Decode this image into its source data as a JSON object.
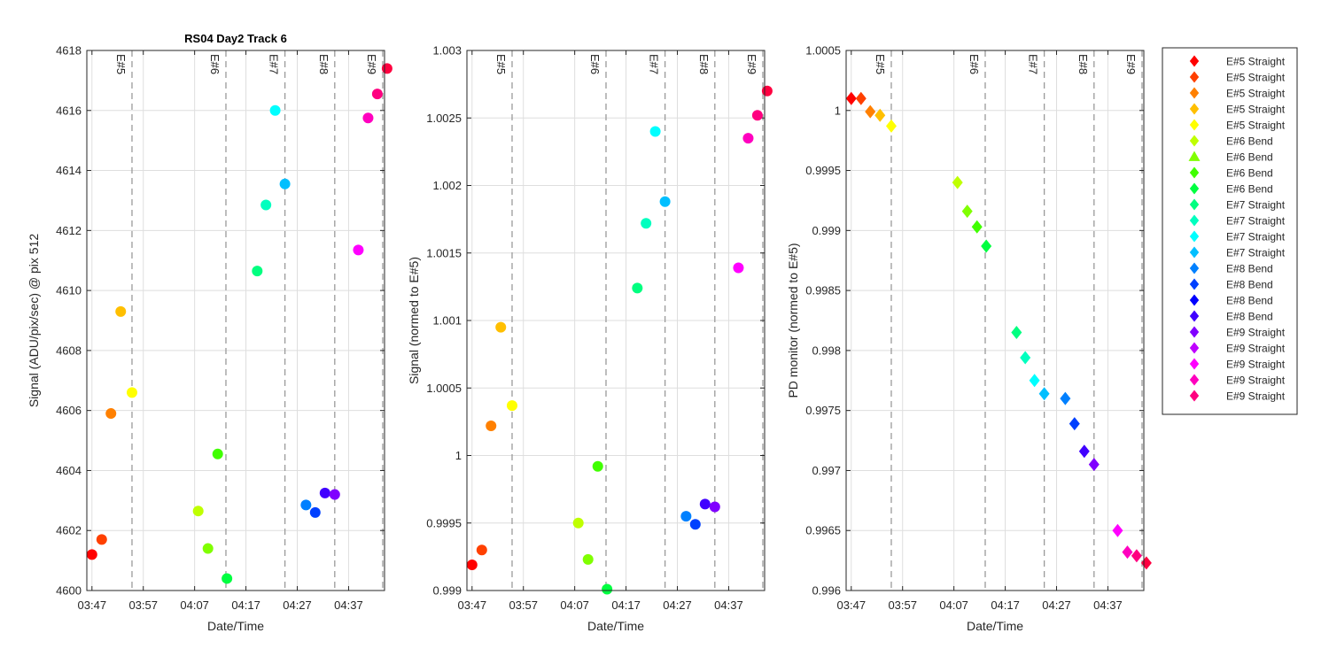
{
  "palette": [
    "#ff0000",
    "#ff4000",
    "#ff8000",
    "#ffbf00",
    "#ffff00",
    "#bfff00",
    "#80ff00",
    "#40ff00",
    "#00ff40",
    "#00ff80",
    "#00ffbf",
    "#00ffff",
    "#00bfff",
    "#0080ff",
    "#0040ff",
    "#0000ff",
    "#4000ff",
    "#8000ff",
    "#bf00ff",
    "#ff00ff",
    "#ff00bf",
    "#ff0080",
    "#ff0040"
  ],
  "chart_data": [
    {
      "type": "scatter",
      "title": "RS04 Day2 Track 6",
      "xlabel": "Date/Time",
      "ylabel": "Signal (ADU/pix/sec) @ pix 512",
      "xticks": [
        "03:47",
        "03:57",
        "04:07",
        "04:17",
        "04:27",
        "04:37"
      ],
      "xlim": [
        "03:46",
        "04:44"
      ],
      "ylim": [
        4600,
        4618
      ],
      "yticks": [
        "4600",
        "4602",
        "4604",
        "4606",
        "4608",
        "4610",
        "4612",
        "4614",
        "4616",
        "4618"
      ],
      "grid": true,
      "marker": "circle",
      "event_lines": [
        {
          "label": "E#5",
          "time": "03:54.8"
        },
        {
          "label": "E#6",
          "time": "04:13.1"
        },
        {
          "label": "E#7",
          "time": "04:24.6"
        },
        {
          "label": "E#8",
          "time": "04:34.3"
        },
        {
          "label": "E#9",
          "time": "04:45.0"
        }
      ],
      "points": [
        {
          "x": "03:47.0",
          "y": 4601.2,
          "color": "#ff0000"
        },
        {
          "x": "03:48.9",
          "y": 4601.7,
          "color": "#ff4000"
        },
        {
          "x": "03:50.7",
          "y": 4605.9,
          "color": "#ff8000"
        },
        {
          "x": "03:52.6",
          "y": 4609.3,
          "color": "#ffbf00"
        },
        {
          "x": "03:54.8",
          "y": 4606.6,
          "color": "#ffff00"
        },
        {
          "x": "04:07.7",
          "y": 4602.65,
          "color": "#bfff00"
        },
        {
          "x": "04:09.6",
          "y": 4601.4,
          "color": "#80ff00"
        },
        {
          "x": "04:11.5",
          "y": 4604.55,
          "color": "#40ff00"
        },
        {
          "x": "04:13.3",
          "y": 4600.4,
          "color": "#00ff40"
        },
        {
          "x": "04:19.2",
          "y": 4610.65,
          "color": "#00ff80"
        },
        {
          "x": "04:20.9",
          "y": 4612.85,
          "color": "#00ffbf"
        },
        {
          "x": "04:22.7",
          "y": 4616.0,
          "color": "#00ffff"
        },
        {
          "x": "04:24.6",
          "y": 4613.55,
          "color": "#00bfff"
        },
        {
          "x": "04:28.7",
          "y": 4602.85,
          "color": "#0080ff"
        },
        {
          "x": "04:30.5",
          "y": 4602.6,
          "color": "#0040ff"
        },
        {
          "x": "04:32.4",
          "y": 4603.25,
          "color": "#4000ff"
        },
        {
          "x": "04:34.3",
          "y": 4603.2,
          "color": "#8000ff"
        },
        {
          "x": "04:38.9",
          "y": 4611.35,
          "color": "#ff00ff"
        },
        {
          "x": "04:40.8",
          "y": 4615.75,
          "color": "#ff00bf"
        },
        {
          "x": "04:42.6",
          "y": 4616.55,
          "color": "#ff0080"
        },
        {
          "x": "04:44.5",
          "y": 4617.4,
          "color": "#ff0040"
        }
      ]
    },
    {
      "type": "scatter",
      "title": "",
      "xlabel": "Date/Time",
      "ylabel": "Signal (normed to E#5)",
      "xticks": [
        "03:47",
        "03:57",
        "04:07",
        "04:17",
        "04:27",
        "04:37"
      ],
      "xlim": [
        "03:46",
        "04:44"
      ],
      "ylim": [
        0.999,
        1.003
      ],
      "yticks": [
        "0.999",
        "0.9995",
        "1",
        "1.0005",
        "1.001",
        "1.0015",
        "1.002",
        "1.0025",
        "1.003"
      ],
      "grid": true,
      "marker": "circle",
      "event_lines": [
        {
          "label": "E#5",
          "time": "03:54.8"
        },
        {
          "label": "E#6",
          "time": "04:13.1"
        },
        {
          "label": "E#7",
          "time": "04:24.6"
        },
        {
          "label": "E#8",
          "time": "04:34.3"
        },
        {
          "label": "E#9",
          "time": "04:45.0"
        }
      ],
      "points": [
        {
          "x": "03:47.0",
          "y": 0.99919,
          "color": "#ff0000"
        },
        {
          "x": "03:48.9",
          "y": 0.9993,
          "color": "#ff4000"
        },
        {
          "x": "03:50.7",
          "y": 1.00022,
          "color": "#ff8000"
        },
        {
          "x": "03:52.6",
          "y": 1.00095,
          "color": "#ffbf00"
        },
        {
          "x": "03:54.8",
          "y": 1.00037,
          "color": "#ffff00"
        },
        {
          "x": "04:07.7",
          "y": 0.9995,
          "color": "#bfff00"
        },
        {
          "x": "04:09.6",
          "y": 0.99923,
          "color": "#80ff00"
        },
        {
          "x": "04:11.5",
          "y": 0.99992,
          "color": "#40ff00"
        },
        {
          "x": "04:13.3",
          "y": 0.99901,
          "color": "#00ff40"
        },
        {
          "x": "04:19.2",
          "y": 1.00124,
          "color": "#00ff80"
        },
        {
          "x": "04:20.9",
          "y": 1.00172,
          "color": "#00ffbf"
        },
        {
          "x": "04:22.7",
          "y": 1.0024,
          "color": "#00ffff"
        },
        {
          "x": "04:24.6",
          "y": 1.00188,
          "color": "#00bfff"
        },
        {
          "x": "04:28.7",
          "y": 0.99955,
          "color": "#0080ff"
        },
        {
          "x": "04:30.5",
          "y": 0.99949,
          "color": "#0040ff"
        },
        {
          "x": "04:32.4",
          "y": 0.99964,
          "color": "#4000ff"
        },
        {
          "x": "04:34.3",
          "y": 0.99962,
          "color": "#8000ff"
        },
        {
          "x": "04:38.9",
          "y": 1.00139,
          "color": "#ff00ff"
        },
        {
          "x": "04:40.8",
          "y": 1.00235,
          "color": "#ff00bf"
        },
        {
          "x": "04:42.6",
          "y": 1.00252,
          "color": "#ff0080"
        },
        {
          "x": "04:44.5",
          "y": 1.0027,
          "color": "#ff0040"
        }
      ]
    },
    {
      "type": "scatter",
      "title": "",
      "xlabel": "Date/Time",
      "ylabel": "PD monitor (normed to E#5)",
      "xticks": [
        "03:47",
        "03:57",
        "04:07",
        "04:17",
        "04:27",
        "04:37"
      ],
      "xlim": [
        "03:46",
        "04:44"
      ],
      "ylim": [
        0.996,
        1.0005
      ],
      "yticks": [
        "0.996",
        "0.9965",
        "0.997",
        "0.9975",
        "0.998",
        "0.9985",
        "0.999",
        "0.9995",
        "1",
        "1.0005"
      ],
      "grid": true,
      "marker": "diamond",
      "event_lines": [
        {
          "label": "E#5",
          "time": "03:54.8"
        },
        {
          "label": "E#6",
          "time": "04:13.1"
        },
        {
          "label": "E#7",
          "time": "04:24.6"
        },
        {
          "label": "E#8",
          "time": "04:34.3"
        },
        {
          "label": "E#9",
          "time": "04:45.0"
        }
      ],
      "points": [
        {
          "x": "03:47.0",
          "y": 1.0001,
          "color": "#ff0000"
        },
        {
          "x": "03:48.9",
          "y": 1.0001,
          "color": "#ff4000"
        },
        {
          "x": "03:50.7",
          "y": 0.99999,
          "color": "#ff8000"
        },
        {
          "x": "03:52.6",
          "y": 0.99996,
          "color": "#ffbf00"
        },
        {
          "x": "03:54.8",
          "y": 0.99987,
          "color": "#ffff00"
        },
        {
          "x": "04:07.7",
          "y": 0.9994,
          "color": "#bfff00"
        },
        {
          "x": "04:09.6",
          "y": 0.99916,
          "color": "#80ff00"
        },
        {
          "x": "04:11.5",
          "y": 0.99903,
          "color": "#40ff00"
        },
        {
          "x": "04:13.3",
          "y": 0.99887,
          "color": "#00ff40"
        },
        {
          "x": "04:19.2",
          "y": 0.99815,
          "color": "#00ff80"
        },
        {
          "x": "04:20.9",
          "y": 0.99794,
          "color": "#00ffbf"
        },
        {
          "x": "04:22.7",
          "y": 0.99775,
          "color": "#00ffff"
        },
        {
          "x": "04:24.6",
          "y": 0.99764,
          "color": "#00bfff"
        },
        {
          "x": "04:28.7",
          "y": 0.9976,
          "color": "#0080ff"
        },
        {
          "x": "04:30.5",
          "y": 0.99739,
          "color": "#0040ff"
        },
        {
          "x": "04:32.4",
          "y": 0.99716,
          "color": "#4000ff"
        },
        {
          "x": "04:34.3",
          "y": 0.99705,
          "color": "#8000ff"
        },
        {
          "x": "04:38.9",
          "y": 0.9965,
          "color": "#ff00ff"
        },
        {
          "x": "04:40.8",
          "y": 0.99632,
          "color": "#ff00bf"
        },
        {
          "x": "04:42.6",
          "y": 0.99629,
          "color": "#ff0080"
        },
        {
          "x": "04:44.5",
          "y": 0.99623,
          "color": "#ff0040"
        }
      ]
    }
  ],
  "legend": {
    "placement": "right",
    "entries": [
      {
        "label": "E#5 Straight",
        "marker": "diamond",
        "color": "#ff0000"
      },
      {
        "label": "E#5 Straight",
        "marker": "diamond",
        "color": "#ff4000"
      },
      {
        "label": "E#5 Straight",
        "marker": "diamond",
        "color": "#ff8000"
      },
      {
        "label": "E#5 Straight",
        "marker": "diamond",
        "color": "#ffbf00"
      },
      {
        "label": "E#5 Straight",
        "marker": "diamond",
        "color": "#ffff00"
      },
      {
        "label": "E#6 Bend",
        "marker": "diamond",
        "color": "#bfff00"
      },
      {
        "label": "E#6 Bend",
        "marker": "triangle",
        "color": "#80ff00"
      },
      {
        "label": "E#6 Bend",
        "marker": "diamond",
        "color": "#40ff00"
      },
      {
        "label": "E#6 Bend",
        "marker": "diamond",
        "color": "#00ff40"
      },
      {
        "label": "E#7 Straight",
        "marker": "diamond",
        "color": "#00ff80"
      },
      {
        "label": "E#7 Straight",
        "marker": "diamond",
        "color": "#00ffbf"
      },
      {
        "label": "E#7 Straight",
        "marker": "diamond",
        "color": "#00ffff"
      },
      {
        "label": "E#7 Straight",
        "marker": "diamond",
        "color": "#00bfff"
      },
      {
        "label": "E#8 Bend",
        "marker": "diamond",
        "color": "#0080ff"
      },
      {
        "label": "E#8 Bend",
        "marker": "diamond",
        "color": "#0040ff"
      },
      {
        "label": "E#8 Bend",
        "marker": "diamond",
        "color": "#0000ff"
      },
      {
        "label": "E#8 Bend",
        "marker": "diamond",
        "color": "#4000ff"
      },
      {
        "label": "E#9 Straight",
        "marker": "diamond",
        "color": "#8000ff"
      },
      {
        "label": "E#9 Straight",
        "marker": "diamond",
        "color": "#bf00ff"
      },
      {
        "label": "E#9 Straight",
        "marker": "diamond",
        "color": "#ff00ff"
      },
      {
        "label": "E#9 Straight",
        "marker": "diamond",
        "color": "#ff00bf"
      },
      {
        "label": "E#9 Straight",
        "marker": "diamond",
        "color": "#ff0080"
      }
    ]
  }
}
